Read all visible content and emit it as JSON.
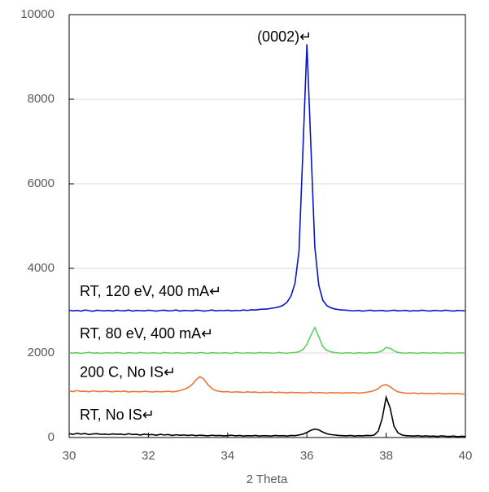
{
  "chart_data": {
    "type": "line",
    "annotation": "(0002)↵",
    "x_label": "2 Theta",
    "xlim": [
      30,
      40
    ],
    "xticks": [
      30,
      32,
      34,
      36,
      38,
      40
    ],
    "ylim": [
      0,
      10000
    ],
    "yticks": [
      0,
      2000,
      4000,
      6000,
      8000,
      10000
    ],
    "grid": true,
    "x": [
      30.0,
      30.1,
      30.2,
      30.3,
      30.4,
      30.5,
      30.6,
      30.7,
      30.8,
      30.9,
      31.0,
      31.1,
      31.2,
      31.3,
      31.4,
      31.5,
      31.6,
      31.7,
      31.8,
      31.9,
      32.0,
      32.1,
      32.2,
      32.3,
      32.4,
      32.5,
      32.6,
      32.7,
      32.8,
      32.9,
      33.0,
      33.1,
      33.2,
      33.3,
      33.4,
      33.5,
      33.6,
      33.7,
      33.8,
      33.9,
      34.0,
      34.1,
      34.2,
      34.3,
      34.4,
      34.5,
      34.6,
      34.7,
      34.8,
      34.9,
      35.0,
      35.1,
      35.2,
      35.3,
      35.4,
      35.5,
      35.6,
      35.7,
      35.8,
      35.9,
      36.0,
      36.1,
      36.2,
      36.3,
      36.4,
      36.5,
      36.6,
      36.7,
      36.8,
      36.9,
      37.0,
      37.1,
      37.2,
      37.3,
      37.4,
      37.5,
      37.6,
      37.7,
      37.8,
      37.9,
      38.0,
      38.1,
      38.2,
      38.3,
      38.4,
      38.5,
      38.6,
      38.7,
      38.8,
      38.9,
      39.0,
      39.1,
      39.2,
      39.3,
      39.4,
      39.5,
      39.6,
      39.7,
      39.8,
      39.9,
      40.0
    ],
    "series": [
      {
        "name": "RT, 120 eV, 400 mA↵",
        "color": "#0a14c8",
        "values": [
          3010,
          2995,
          3005,
          2990,
          3015,
          3000,
          2985,
          3010,
          3000,
          2995,
          3005,
          2990,
          3010,
          3000,
          2995,
          3015,
          2990,
          3005,
          3000,
          2995,
          3010,
          3000,
          2990,
          3005,
          3010,
          2995,
          3000,
          3015,
          2990,
          3005,
          3000,
          2995,
          3010,
          3005,
          2990,
          3000,
          3015,
          2995,
          3005,
          3000,
          3010,
          2995,
          3005,
          3000,
          3015,
          3005,
          3020,
          3015,
          3030,
          3035,
          3040,
          3055,
          3070,
          3090,
          3130,
          3200,
          3350,
          3650,
          4400,
          6800,
          9300,
          6900,
          4500,
          3600,
          3250,
          3120,
          3070,
          3040,
          3025,
          3015,
          3010,
          3000,
          2995,
          3005,
          2990,
          3000,
          3010,
          2995,
          3000,
          3005,
          2990,
          3000,
          3010,
          2995,
          3000,
          3005,
          2990,
          3000,
          2995,
          3010,
          3000,
          2990,
          3005,
          3000,
          2995,
          3010,
          3000,
          2990,
          3005,
          3000,
          2995
        ]
      },
      {
        "name": "RT, 80 eV, 400 mA↵",
        "color": "#5ecf5e",
        "values": [
          2010,
          1995,
          2005,
          1990,
          2000,
          2015,
          1995,
          2005,
          1990,
          2000,
          2005,
          1995,
          2010,
          2000,
          1990,
          2005,
          2000,
          1995,
          2010,
          2000,
          1995,
          2005,
          2000,
          1990,
          2010,
          2000,
          1995,
          2005,
          2000,
          1990,
          2005,
          2000,
          1995,
          2010,
          2000,
          1990,
          2005,
          2000,
          1995,
          2005,
          2000,
          1990,
          2010,
          2000,
          1995,
          2005,
          2000,
          1995,
          2010,
          2000,
          2005,
          1995,
          2000,
          2010,
          2000,
          1995,
          2005,
          2010,
          2030,
          2080,
          2200,
          2420,
          2600,
          2380,
          2150,
          2060,
          2030,
          2010,
          2000,
          1995,
          2005,
          2000,
          1990,
          2005,
          2000,
          1995,
          2010,
          2000,
          2015,
          2050,
          2130,
          2110,
          2050,
          2010,
          2000,
          1995,
          2005,
          2000,
          1990,
          2005,
          2000,
          1995,
          2005,
          2000,
          1990,
          2005,
          2000,
          1995,
          2000,
          2005,
          1995
        ]
      },
      {
        "name": "200 C, No IS↵",
        "color": "#e8773a",
        "values": [
          1100,
          1085,
          1110,
          1090,
          1095,
          1080,
          1105,
          1090,
          1085,
          1100,
          1090,
          1080,
          1095,
          1085,
          1100,
          1075,
          1090,
          1085,
          1080,
          1095,
          1085,
          1075,
          1090,
          1080,
          1085,
          1095,
          1080,
          1090,
          1110,
          1140,
          1180,
          1250,
          1360,
          1440,
          1380,
          1250,
          1160,
          1110,
          1090,
          1080,
          1085,
          1070,
          1080,
          1075,
          1065,
          1080,
          1070,
          1075,
          1060,
          1070,
          1065,
          1075,
          1060,
          1070,
          1065,
          1055,
          1070,
          1060,
          1065,
          1055,
          1060,
          1070,
          1055,
          1065,
          1060,
          1050,
          1065,
          1055,
          1060,
          1050,
          1060,
          1055,
          1065,
          1050,
          1060,
          1070,
          1085,
          1110,
          1160,
          1230,
          1250,
          1200,
          1130,
          1080,
          1060,
          1050,
          1045,
          1055,
          1040,
          1050,
          1040,
          1045,
          1035,
          1050,
          1040,
          1030,
          1045,
          1035,
          1040,
          1030,
          1025
        ]
      },
      {
        "name": "RT, No IS↵",
        "color": "#000000",
        "values": [
          90,
          75,
          100,
          80,
          95,
          70,
          85,
          90,
          75,
          80,
          70,
          85,
          75,
          80,
          65,
          90,
          70,
          75,
          60,
          80,
          65,
          70,
          55,
          75,
          60,
          70,
          50,
          65,
          55,
          60,
          50,
          60,
          45,
          55,
          50,
          40,
          55,
          45,
          50,
          40,
          45,
          55,
          40,
          50,
          35,
          45,
          40,
          50,
          35,
          45,
          40,
          35,
          50,
          40,
          45,
          35,
          50,
          45,
          60,
          80,
          120,
          170,
          200,
          180,
          130,
          90,
          70,
          60,
          50,
          45,
          40,
          50,
          35,
          45,
          40,
          50,
          45,
          60,
          150,
          450,
          950,
          700,
          260,
          110,
          60,
          45,
          40,
          35,
          45,
          30,
          40,
          30,
          35,
          25,
          40,
          30,
          25,
          35,
          20,
          30,
          25
        ]
      }
    ]
  }
}
